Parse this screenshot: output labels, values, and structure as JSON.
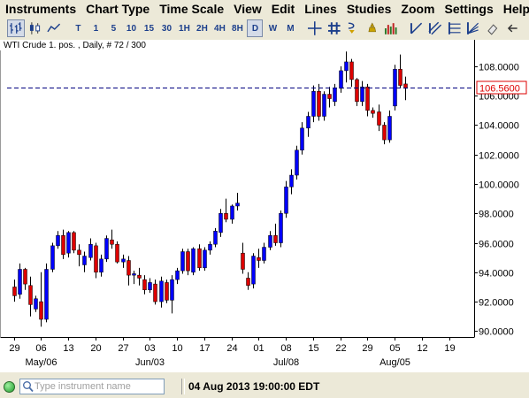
{
  "menu": [
    "Instruments",
    "Chart Type",
    "Time Scale",
    "View",
    "Edit",
    "Lines",
    "Studies",
    "Zoom",
    "Settings",
    "Help"
  ],
  "toolbar": {
    "timeframes": [
      "T",
      "1",
      "5",
      "10",
      "15",
      "30",
      "1H",
      "2H",
      "4H",
      "8H",
      "D",
      "W",
      "M"
    ],
    "active_timeframe": "D",
    "icons": [
      "bar-chart-type-icon",
      "candlestick-type-icon",
      "line-chart-type-icon",
      "crosshair-icon",
      "grid-icon",
      "study-tool-icon",
      "alert-icon",
      "volume-bars-icon",
      "trendline-icon",
      "channel-icon",
      "fibonacci-icon",
      "fan-icon",
      "eraser-icon",
      "close-arrow-icon"
    ]
  },
  "chart": {
    "caption": "WTI Crude 1. pos. , Daily, # 72 / 300",
    "last_price_label": "106.5600",
    "colors": {
      "up": "#0000ff",
      "down": "#dd0000",
      "wick": "#000000",
      "last_line": "#000080",
      "grid": "#d6d6d6"
    }
  },
  "status": {
    "instrument_placeholder": "Type instrument name",
    "timestamp": "04 Aug 2013 19:00:00 EDT"
  },
  "chart_data": {
    "type": "candlestick",
    "title": "WTI Crude 1. pos. , Daily, # 72 / 300",
    "ylim": [
      89.6,
      109.8
    ],
    "y_ticks": [
      90,
      92,
      94,
      96,
      98,
      100,
      102,
      104,
      106,
      108
    ],
    "y_tick_labels": [
      "90.0000",
      "92.0000",
      "94.0000",
      "96.0000",
      "98.0000",
      "100.0000",
      "102.0000",
      "104.0000",
      "106.0000",
      "108.0000"
    ],
    "x_tick_labels": [
      "29",
      "06",
      "13",
      "20",
      "27",
      "03",
      "10",
      "17",
      "24",
      "01",
      "08",
      "15",
      "22",
      "29",
      "05",
      "12",
      "19"
    ],
    "x_month_labels": [
      "May/06",
      "Jun/03",
      "Jul/08",
      "Aug/05"
    ],
    "last_price": 106.56,
    "candles": [
      [
        93.0,
        93.5,
        92.0,
        92.4
      ],
      [
        92.5,
        94.6,
        92.2,
        94.2
      ],
      [
        94.2,
        94.3,
        92.8,
        93.2
      ],
      [
        93.1,
        93.7,
        91.0,
        91.8
      ],
      [
        91.5,
        92.4,
        91.3,
        92.2
      ],
      [
        92.0,
        94.0,
        90.3,
        90.8
      ],
      [
        90.8,
        94.6,
        90.6,
        94.2
      ],
      [
        94.2,
        96.0,
        94.0,
        95.8
      ],
      [
        95.8,
        96.8,
        95.6,
        96.5
      ],
      [
        96.5,
        96.9,
        94.9,
        95.2
      ],
      [
        95.3,
        96.8,
        95.0,
        96.7
      ],
      [
        96.7,
        96.8,
        95.3,
        95.5
      ],
      [
        95.5,
        95.9,
        94.4,
        95.2
      ],
      [
        94.5,
        95.4,
        94.0,
        95.1
      ],
      [
        95.0,
        96.3,
        94.8,
        95.9
      ],
      [
        95.8,
        96.0,
        93.6,
        94.0
      ],
      [
        94.0,
        95.2,
        93.7,
        94.9
      ],
      [
        94.9,
        96.5,
        94.7,
        96.3
      ],
      [
        96.2,
        96.9,
        95.6,
        95.9
      ],
      [
        95.9,
        96.1,
        94.6,
        94.7
      ],
      [
        94.7,
        95.2,
        94.3,
        94.9
      ],
      [
        94.8,
        95.1,
        93.1,
        93.8
      ],
      [
        93.8,
        94.1,
        93.2,
        93.9
      ],
      [
        93.8,
        94.3,
        93.1,
        93.6
      ],
      [
        93.5,
        93.8,
        92.5,
        92.8
      ],
      [
        92.8,
        93.6,
        92.6,
        93.3
      ],
      [
        93.2,
        93.5,
        91.8,
        92.0
      ],
      [
        92.0,
        93.7,
        91.6,
        93.4
      ],
      [
        93.3,
        93.5,
        91.9,
        92.1
      ],
      [
        92.1,
        93.8,
        91.2,
        93.5
      ],
      [
        93.5,
        94.3,
        93.2,
        94.1
      ],
      [
        94.1,
        95.6,
        93.9,
        95.4
      ],
      [
        95.4,
        95.6,
        93.8,
        94.1
      ],
      [
        94.0,
        95.7,
        93.8,
        95.6
      ],
      [
        95.6,
        95.9,
        94.1,
        94.3
      ],
      [
        94.3,
        95.7,
        94.1,
        95.5
      ],
      [
        95.5,
        96.1,
        95.2,
        95.9
      ],
      [
        95.9,
        97.0,
        95.7,
        96.8
      ],
      [
        96.7,
        98.3,
        96.4,
        98.0
      ],
      [
        98.0,
        99.0,
        97.4,
        97.6
      ],
      [
        97.6,
        98.6,
        97.3,
        98.5
      ],
      [
        98.5,
        99.4,
        98.2,
        98.7
      ],
      [
        95.3,
        96.0,
        93.9,
        94.2
      ],
      [
        93.6,
        94.0,
        92.8,
        93.1
      ],
      [
        93.2,
        95.3,
        92.9,
        95.1
      ],
      [
        95.0,
        95.6,
        94.3,
        94.8
      ],
      [
        94.8,
        96.0,
        94.6,
        95.7
      ],
      [
        95.7,
        96.8,
        95.5,
        96.5
      ],
      [
        96.5,
        97.3,
        95.8,
        96.0
      ],
      [
        96.0,
        98.2,
        95.7,
        98.0
      ],
      [
        98.0,
        100.2,
        97.7,
        99.8
      ],
      [
        99.8,
        101.0,
        99.3,
        100.6
      ],
      [
        100.6,
        102.6,
        100.3,
        102.3
      ],
      [
        102.3,
        104.2,
        102.0,
        103.8
      ],
      [
        103.8,
        104.9,
        103.2,
        104.6
      ],
      [
        104.6,
        106.7,
        104.2,
        106.3
      ],
      [
        106.3,
        106.8,
        104.3,
        104.6
      ],
      [
        104.6,
        106.3,
        104.3,
        106.1
      ],
      [
        106.1,
        106.6,
        105.2,
        105.8
      ],
      [
        105.6,
        106.8,
        105.3,
        106.5
      ],
      [
        106.5,
        108.0,
        106.2,
        107.7
      ],
      [
        107.7,
        109.0,
        106.9,
        108.3
      ],
      [
        108.3,
        108.5,
        106.6,
        107.1
      ],
      [
        107.1,
        107.2,
        105.3,
        105.6
      ],
      [
        105.6,
        107.0,
        105.3,
        106.6
      ],
      [
        106.6,
        106.8,
        104.6,
        105.0
      ],
      [
        105.0,
        105.2,
        104.5,
        104.8
      ],
      [
        104.9,
        105.4,
        103.6,
        104.0
      ],
      [
        104.0,
        104.2,
        102.7,
        103.0
      ],
      [
        103.0,
        105.0,
        102.8,
        104.6
      ],
      [
        105.3,
        108.1,
        105.0,
        107.8
      ],
      [
        107.8,
        108.8,
        106.5,
        106.7
      ],
      [
        106.8,
        107.3,
        105.7,
        106.5
      ]
    ]
  }
}
